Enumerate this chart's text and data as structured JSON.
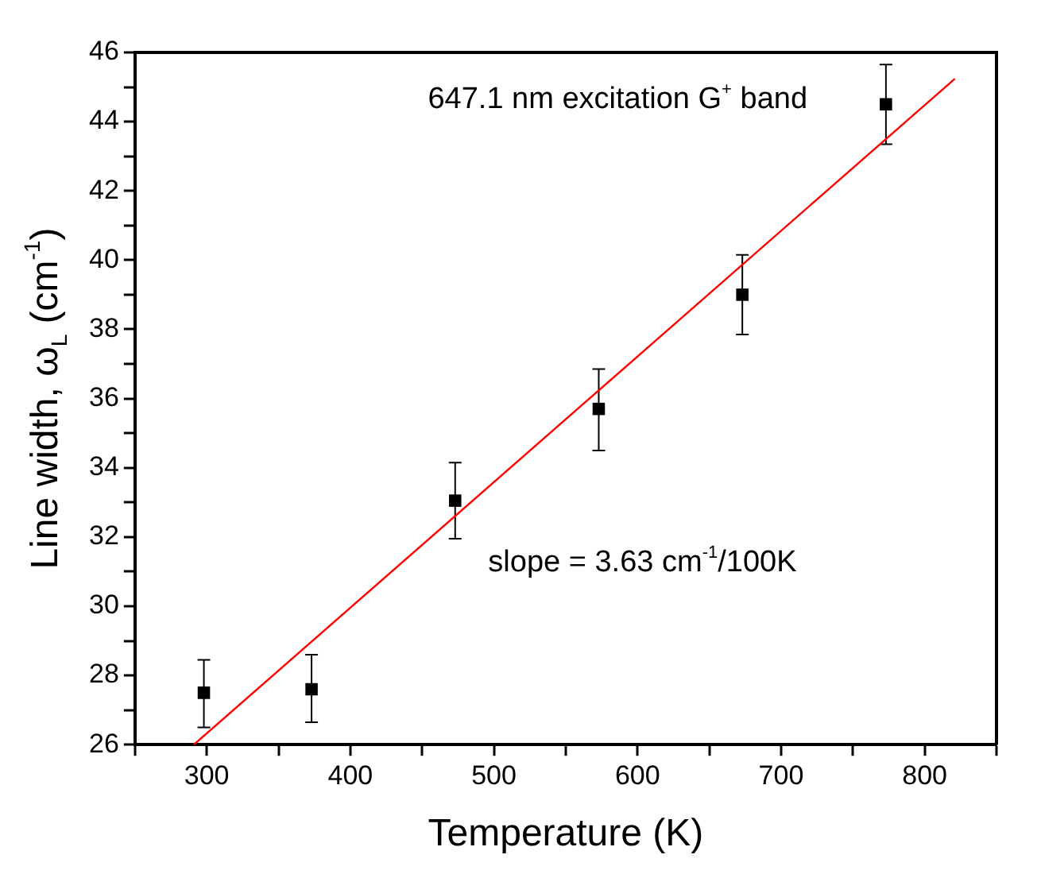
{
  "chart_data": {
    "type": "scatter",
    "xlabel": "Temperature (K)",
    "ylabel": "Line width, ω$_{L}$ (cm$^{-1}$)",
    "annotations": [
      "647.1 nm excitation G$^{+}$ band",
      "slope = 3.63 cm$^{-1}$/100K"
    ],
    "xlim": [
      250,
      850
    ],
    "xticks": [
      {
        "value": 250,
        "label": null
      },
      300,
      {
        "value": 350,
        "label": null
      },
      400,
      {
        "value": 450,
        "label": null
      },
      500,
      {
        "value": 550,
        "label": null
      },
      600,
      {
        "value": 650,
        "label": null
      },
      700,
      {
        "value": 750,
        "label": null
      },
      800,
      {
        "value": 850,
        "label": null
      }
    ],
    "ylim": [
      26,
      46
    ],
    "yticks": [
      26,
      {
        "value": 27,
        "label": null
      },
      28,
      {
        "value": 29,
        "label": null
      },
      30,
      {
        "value": 31,
        "label": null
      },
      32,
      {
        "value": 33,
        "label": null
      },
      34,
      {
        "value": 35,
        "label": null
      },
      36,
      {
        "value": 37,
        "label": null
      },
      38,
      {
        "value": 39,
        "label": null
      },
      40,
      {
        "value": 41,
        "label": null
      },
      42,
      {
        "value": 43,
        "label": null
      },
      44,
      {
        "value": 45,
        "label": null
      },
      46
    ],
    "grid": false,
    "legend": false,
    "marker": "square",
    "series": [
      {
        "color": "#000000",
        "x": [
          298,
          373,
          473,
          573,
          673,
          773
        ],
        "values": [
          27.5,
          27.6,
          33.05,
          35.7,
          39.0,
          44.5
        ],
        "errors": [
          [
            26.5,
            28.45
          ],
          [
            26.65,
            28.6
          ],
          [
            31.95,
            34.15
          ],
          [
            34.5,
            36.85
          ],
          [
            37.85,
            40.15
          ],
          [
            43.35,
            45.65
          ]
        ]
      },
      {
        "type": "line",
        "color": "#ff0000",
        "line_style": "solid",
        "marker": "none",
        "x": [
          291,
          821
        ],
        "values": [
          26,
          45.24
        ]
      }
    ]
  }
}
